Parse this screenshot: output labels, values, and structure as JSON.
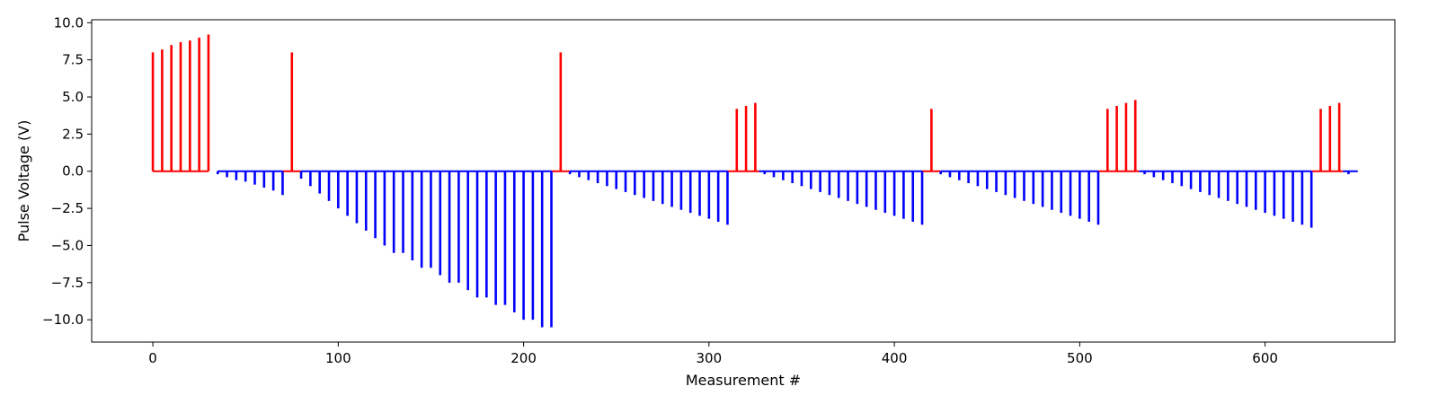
{
  "chart_data": {
    "type": "bar",
    "title": "",
    "xlabel": "Measurement #",
    "ylabel": "Pulse Voltage (V)",
    "xlim": [
      -33,
      670
    ],
    "ylim": [
      -11.5,
      10.2
    ],
    "x_ticks": [
      0,
      100,
      200,
      300,
      400,
      500,
      600
    ],
    "y_ticks": [
      -10.0,
      -7.5,
      -5.0,
      -2.5,
      0.0,
      2.5,
      5.0,
      7.5,
      10.0
    ],
    "x_tick_labels": [
      "0",
      "100",
      "200",
      "300",
      "400",
      "500",
      "600"
    ],
    "y_tick_labels": [
      "−10.0",
      "−7.5",
      "−5.0",
      "−2.5",
      "0.0",
      "2.5",
      "5.0",
      "7.5",
      "10.0"
    ],
    "grid": false,
    "colors": {
      "positive": "#ff0000",
      "negative": "#0000ff"
    },
    "series": [
      {
        "color": "#ff0000",
        "points": [
          [
            0,
            8.0
          ],
          [
            5,
            8.2
          ],
          [
            10,
            8.5
          ],
          [
            15,
            8.7
          ],
          [
            20,
            8.8
          ],
          [
            25,
            9.0
          ],
          [
            30,
            9.2
          ],
          [
            75,
            8.0
          ],
          [
            220,
            8.0
          ],
          [
            315,
            4.2
          ],
          [
            320,
            4.4
          ],
          [
            325,
            4.6
          ],
          [
            420,
            4.2
          ],
          [
            515,
            4.2
          ],
          [
            520,
            4.4
          ],
          [
            525,
            4.6
          ],
          [
            530,
            4.8
          ],
          [
            630,
            4.2
          ],
          [
            635,
            4.4
          ],
          [
            640,
            4.6
          ]
        ]
      },
      {
        "color": "#0000ff",
        "points": [
          [
            35,
            -0.2
          ],
          [
            40,
            -0.4
          ],
          [
            45,
            -0.6
          ],
          [
            50,
            -0.7
          ],
          [
            55,
            -0.9
          ],
          [
            60,
            -1.1
          ],
          [
            65,
            -1.3
          ],
          [
            70,
            -1.6
          ],
          [
            80,
            -0.5
          ],
          [
            85,
            -1.0
          ],
          [
            90,
            -1.5
          ],
          [
            95,
            -2.0
          ],
          [
            100,
            -2.5
          ],
          [
            105,
            -3.0
          ],
          [
            110,
            -3.5
          ],
          [
            115,
            -4.0
          ],
          [
            120,
            -4.5
          ],
          [
            125,
            -5.0
          ],
          [
            130,
            -5.5
          ],
          [
            135,
            -5.5
          ],
          [
            140,
            -6.0
          ],
          [
            145,
            -6.5
          ],
          [
            150,
            -6.5
          ],
          [
            155,
            -7.0
          ],
          [
            160,
            -7.5
          ],
          [
            165,
            -7.5
          ],
          [
            170,
            -8.0
          ],
          [
            175,
            -8.5
          ],
          [
            180,
            -8.5
          ],
          [
            185,
            -9.0
          ],
          [
            190,
            -9.0
          ],
          [
            195,
            -9.5
          ],
          [
            200,
            -10.0
          ],
          [
            205,
            -10.0
          ],
          [
            210,
            -10.5
          ],
          [
            215,
            -10.5
          ],
          [
            225,
            -0.2
          ],
          [
            230,
            -0.4
          ],
          [
            235,
            -0.6
          ],
          [
            240,
            -0.8
          ],
          [
            245,
            -1.0
          ],
          [
            250,
            -1.2
          ],
          [
            255,
            -1.4
          ],
          [
            260,
            -1.6
          ],
          [
            265,
            -1.8
          ],
          [
            270,
            -2.0
          ],
          [
            275,
            -2.2
          ],
          [
            280,
            -2.4
          ],
          [
            285,
            -2.6
          ],
          [
            290,
            -2.8
          ],
          [
            295,
            -3.0
          ],
          [
            300,
            -3.2
          ],
          [
            305,
            -3.4
          ],
          [
            310,
            -3.6
          ],
          [
            330,
            -0.2
          ],
          [
            335,
            -0.4
          ],
          [
            340,
            -0.6
          ],
          [
            345,
            -0.8
          ],
          [
            350,
            -1.0
          ],
          [
            355,
            -1.2
          ],
          [
            360,
            -1.4
          ],
          [
            365,
            -1.6
          ],
          [
            370,
            -1.8
          ],
          [
            375,
            -2.0
          ],
          [
            380,
            -2.2
          ],
          [
            385,
            -2.4
          ],
          [
            390,
            -2.6
          ],
          [
            395,
            -2.8
          ],
          [
            400,
            -3.0
          ],
          [
            405,
            -3.2
          ],
          [
            410,
            -3.4
          ],
          [
            415,
            -3.6
          ],
          [
            425,
            -0.2
          ],
          [
            430,
            -0.4
          ],
          [
            435,
            -0.6
          ],
          [
            440,
            -0.8
          ],
          [
            445,
            -1.0
          ],
          [
            450,
            -1.2
          ],
          [
            455,
            -1.4
          ],
          [
            460,
            -1.6
          ],
          [
            465,
            -1.8
          ],
          [
            470,
            -2.0
          ],
          [
            475,
            -2.2
          ],
          [
            480,
            -2.4
          ],
          [
            485,
            -2.6
          ],
          [
            490,
            -2.8
          ],
          [
            495,
            -3.0
          ],
          [
            500,
            -3.2
          ],
          [
            505,
            -3.4
          ],
          [
            510,
            -3.6
          ],
          [
            535,
            -0.2
          ],
          [
            540,
            -0.4
          ],
          [
            545,
            -0.6
          ],
          [
            550,
            -0.8
          ],
          [
            555,
            -1.0
          ],
          [
            560,
            -1.2
          ],
          [
            565,
            -1.4
          ],
          [
            570,
            -1.6
          ],
          [
            575,
            -1.8
          ],
          [
            580,
            -2.0
          ],
          [
            585,
            -2.2
          ],
          [
            590,
            -2.4
          ],
          [
            595,
            -2.6
          ],
          [
            600,
            -2.8
          ],
          [
            605,
            -3.0
          ],
          [
            610,
            -3.2
          ],
          [
            615,
            -3.4
          ],
          [
            620,
            -3.6
          ],
          [
            625,
            -3.8
          ],
          [
            645,
            -0.2
          ]
        ]
      }
    ],
    "baselines": [
      {
        "color": "#ff0000",
        "from": 0,
        "to": 30
      },
      {
        "color": "#0000ff",
        "from": 35,
        "to": 70
      },
      {
        "color": "#ff0000",
        "from": 70,
        "to": 80
      },
      {
        "color": "#0000ff",
        "from": 80,
        "to": 215
      },
      {
        "color": "#ff0000",
        "from": 215,
        "to": 225
      },
      {
        "color": "#0000ff",
        "from": 225,
        "to": 310
      },
      {
        "color": "#ff0000",
        "from": 310,
        "to": 327
      },
      {
        "color": "#0000ff",
        "from": 327,
        "to": 415
      },
      {
        "color": "#ff0000",
        "from": 415,
        "to": 425
      },
      {
        "color": "#0000ff",
        "from": 425,
        "to": 510
      },
      {
        "color": "#ff0000",
        "from": 510,
        "to": 532
      },
      {
        "color": "#0000ff",
        "from": 532,
        "to": 625
      },
      {
        "color": "#ff0000",
        "from": 625,
        "to": 642
      },
      {
        "color": "#0000ff",
        "from": 642,
        "to": 650
      }
    ]
  }
}
